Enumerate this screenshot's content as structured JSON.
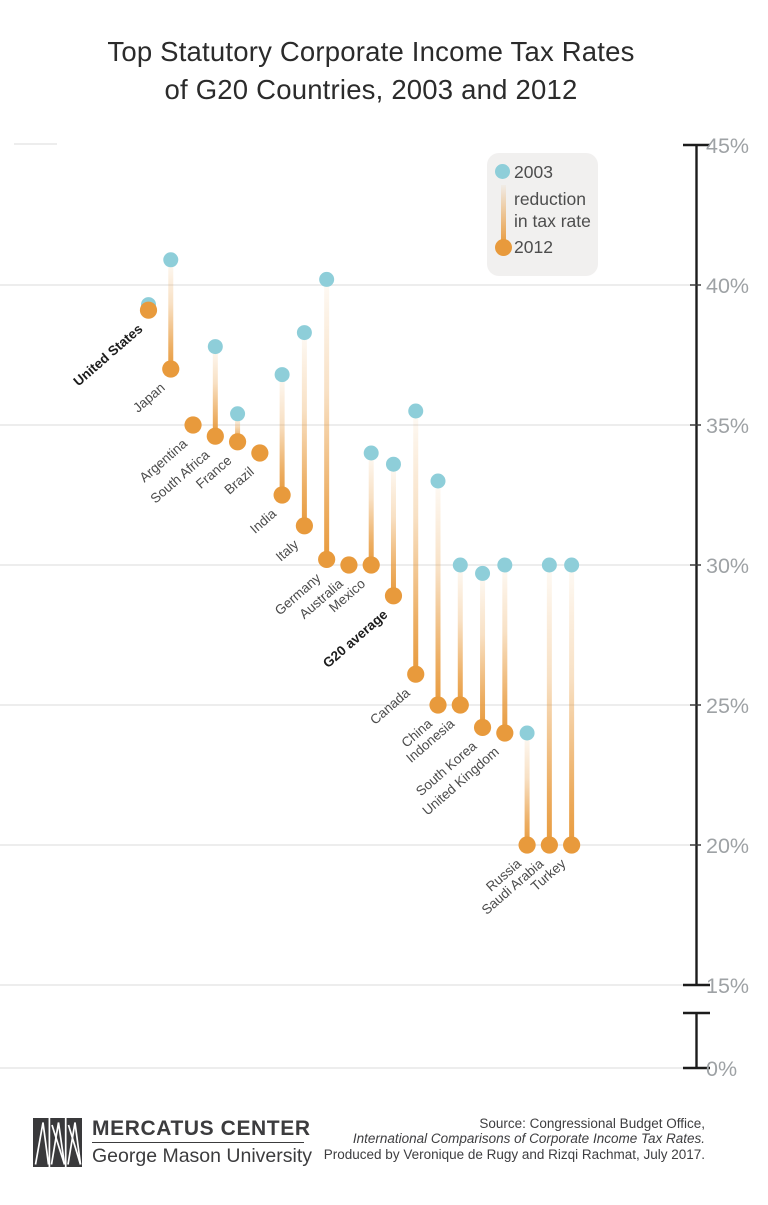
{
  "title": {
    "line1": "Top Statutory Corporate Income Tax Rates",
    "line2": "of G20 Countries, 2003 and 2012"
  },
  "legend": {
    "year_2003_label": "2003",
    "reduction_label_line1": "reduction",
    "reduction_label_line2": "in tax rate",
    "year_2012_label": "2012"
  },
  "colors": {
    "dot_2003_blue": "#8eced9",
    "dot_2012_orange": "#e89a3c",
    "gridline": "#ededed",
    "axis": "#1c1c1c",
    "axis_label": "#9ea2a5",
    "country_label": "#4b4b4b",
    "emphasized_label": "#1c1c1c",
    "legend_bg": "#f1f0ef"
  },
  "chart_data": {
    "type": "dumbbell",
    "title": "Top Statutory Corporate Income Tax Rates of G20 Countries, 2003 and 2012",
    "categories": [
      "United States",
      "Japan",
      "Argentina",
      "South Africa",
      "France",
      "Brazil",
      "India",
      "Italy",
      "Germany",
      "Australia",
      "Mexico",
      "G20 average",
      "Canada",
      "China",
      "Indonesia",
      "South Korea",
      "United Kingdom",
      "Russia",
      "Saudi Arabia",
      "Turkey"
    ],
    "series": [
      {
        "name": "2003",
        "values": [
          39.3,
          40.9,
          35.0,
          37.8,
          35.4,
          34.0,
          36.8,
          38.3,
          40.2,
          30.0,
          34.0,
          33.6,
          35.5,
          33.0,
          30.0,
          29.7,
          30.0,
          24.0,
          30.0,
          30.0
        ]
      },
      {
        "name": "2012",
        "values": [
          39.1,
          37.0,
          35.0,
          34.6,
          34.4,
          34.0,
          32.5,
          31.4,
          30.2,
          30.0,
          30.0,
          28.9,
          26.1,
          25.0,
          25.0,
          24.2,
          24.0,
          20.0,
          20.0,
          20.0
        ]
      }
    ],
    "emphasized_categories": [
      "United States",
      "G20 average"
    ],
    "ylabel": "",
    "xlabel": "",
    "y_axis": {
      "unit": "%",
      "tick_labels": [
        "45%",
        "40%",
        "35%",
        "30%",
        "25%",
        "20%",
        "15%",
        "0%"
      ],
      "range_shown": [
        15,
        45
      ],
      "axis_break_to_zero": true,
      "grid": true
    },
    "legend_position": "top-right inside plot"
  },
  "footer": {
    "logo_line1": "MERCATUS CENTER",
    "logo_line2": "George Mason University",
    "source_line1": "Source: Congressional Budget Office,",
    "source_line2": "International Comparisons of Corporate Income Tax Rates.",
    "source_line3": "Produced by Veronique de Rugy and Rizqi Rachmat, July 2017."
  }
}
